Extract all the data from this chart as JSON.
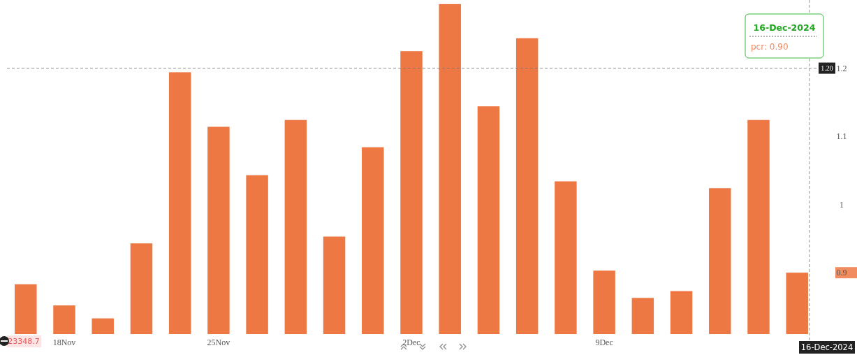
{
  "chart_data": {
    "type": "bar",
    "categories": [
      null,
      "18Nov",
      null,
      null,
      null,
      "25Nov",
      null,
      null,
      null,
      null,
      "2Dec",
      null,
      null,
      null,
      null,
      "9Dec",
      null,
      null,
      null,
      null,
      null
    ],
    "values": [
      0.883,
      0.852,
      0.833,
      0.943,
      1.194,
      1.114,
      1.043,
      1.124,
      0.953,
      1.084,
      1.225,
      1.294,
      1.144,
      1.244,
      1.034,
      0.903,
      0.863,
      0.873,
      1.024,
      1.124,
      0.9
    ],
    "color": "#ed7843",
    "ylim": [
      0.81,
      1.3
    ],
    "yticks": [
      {
        "value": 0.9,
        "label": "0.9"
      },
      1,
      1.1,
      {
        "value": 1.2,
        "label": "1.2"
      }
    ],
    "grid": false,
    "ref_lines": [
      {
        "axis": "y",
        "value": 1.2,
        "label": "1.20",
        "line_style": "dashed"
      }
    ],
    "annotations": [
      "16-Dec-2024",
      "pcr: 0.90",
      "16-Dec-2024",
      "23348.7"
    ]
  }
}
